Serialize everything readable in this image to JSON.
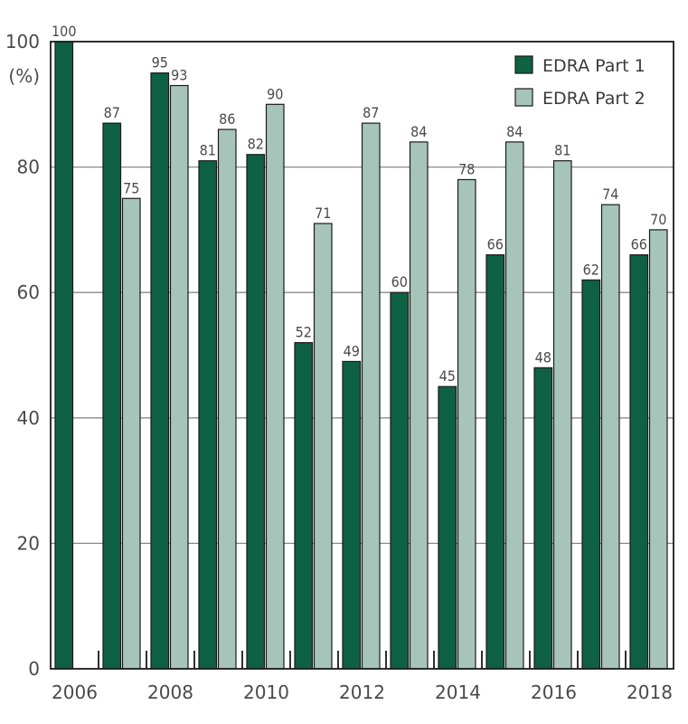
{
  "chart_data": {
    "type": "bar",
    "title": "",
    "xlabel": "",
    "ylabel": "(%)",
    "ylim": [
      0,
      100
    ],
    "yticks": [
      0,
      20,
      40,
      60,
      80,
      100
    ],
    "grid": true,
    "legend_position": "top-right",
    "categories": [
      "2006",
      "2007",
      "2008",
      "2009",
      "2010",
      "2011",
      "2012",
      "2013",
      "2014",
      "2015",
      "2016",
      "2017",
      "2018"
    ],
    "x_tick_labels": [
      "2006",
      "2008",
      "2010",
      "2012",
      "2014",
      "2016",
      "2018"
    ],
    "series": [
      {
        "name": "EDRA Part 1",
        "color": "#0e6142",
        "values": [
          100,
          87,
          95,
          81,
          82,
          52,
          49,
          60,
          45,
          66,
          48,
          62,
          66
        ]
      },
      {
        "name": "EDRA Part 2",
        "color": "#a7c4bb",
        "values": [
          null,
          75,
          93,
          86,
          90,
          71,
          87,
          84,
          78,
          84,
          81,
          74,
          70
        ]
      }
    ]
  }
}
